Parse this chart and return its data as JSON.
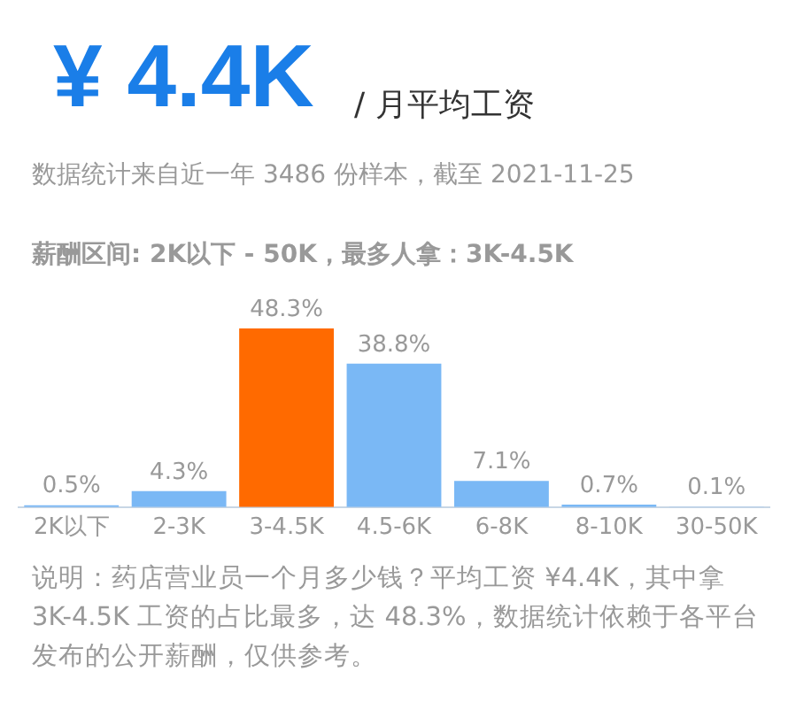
{
  "chart_data": {
    "type": "bar",
    "title": "¥ 4.4K",
    "subtitle": "/ 月平均工资",
    "annotations": [
      "数据统计来自近一年 3486 份样本，截至 2021-11-25",
      "薪酬区间: 2K以下 - 50K，最多人拿：3K-4.5K",
      "说明：药店营业员一个月多少钱？平均工资 ¥4.4K，其中拿 3K-4.5K 工资的占比最多，达 48.3%，数据统计依赖于各平台发布的公开薪酬，仅供参考。"
    ],
    "categories": [
      "2K以下",
      "2-3K",
      "3-4.5K",
      "4.5-6K",
      "6-8K",
      "8-10K",
      "30-50K"
    ],
    "values": [
      0.5,
      4.3,
      48.3,
      38.8,
      7.1,
      0.7,
      0.1
    ],
    "colors": [
      "#7ab8f5",
      "#7ab8f5",
      "#ff6a00",
      "#7ab8f5",
      "#7ab8f5",
      "#7ab8f5",
      "#7ab8f5"
    ],
    "value_labels": [
      "0.5%",
      "4.3%",
      "48.3%",
      "38.8%",
      "7.1%",
      "0.7%",
      "0.1%"
    ],
    "grid": false,
    "legend": false
  }
}
